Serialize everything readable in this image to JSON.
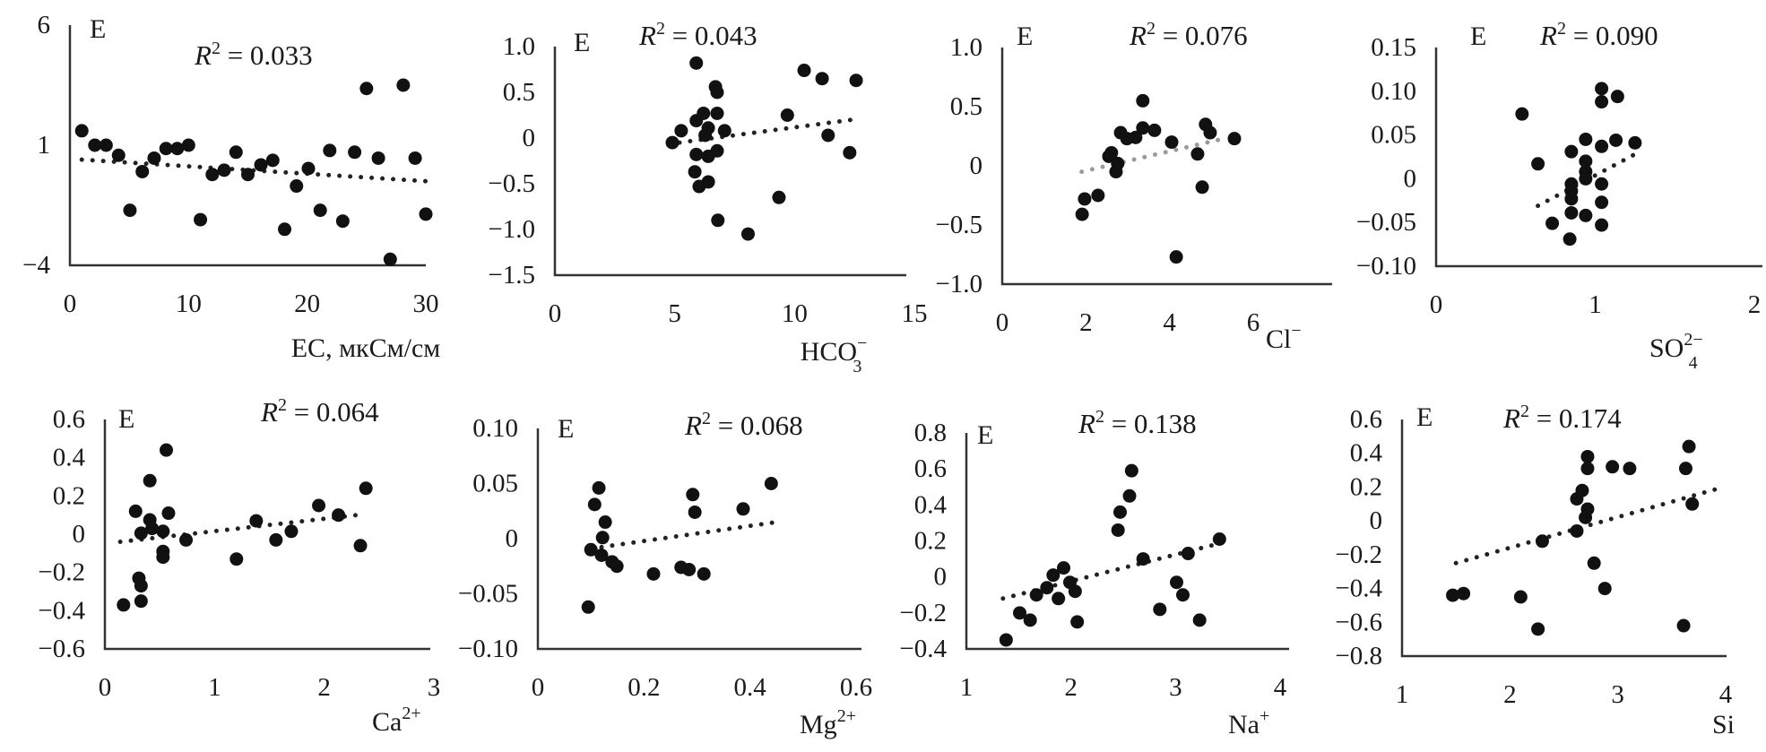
{
  "y_label": "E",
  "stat_symbol": "R",
  "stat_power": "2",
  "stat_eq": " = ",
  "colors": {
    "points": "#111111",
    "trend": "#222222",
    "trend_alt": "#9a9a9a",
    "axis": "#333333"
  },
  "chart_data": [
    {
      "type": "scatter",
      "r2": "0.033",
      "xlabel": {
        "base": "EC, мкСм/см",
        "sub": "",
        "sup": ""
      },
      "ylabel": "E",
      "xlim": [
        0,
        30
      ],
      "ylim": [
        -4,
        6
      ],
      "xticks": [
        {
          "v": 0,
          "label": "0"
        },
        {
          "v": 10,
          "label": "10"
        },
        {
          "v": 20,
          "label": "20"
        },
        {
          "v": 30,
          "label": "30"
        }
      ],
      "yticks": [
        {
          "v": 6,
          "label": "6"
        },
        {
          "v": 1,
          "label": "1"
        },
        {
          "v": -4,
          "label": "−4"
        }
      ],
      "trend_color": "#222222",
      "trendline": [
        [
          1,
          0.4
        ],
        [
          30,
          -0.5
        ]
      ],
      "points": [
        [
          1,
          1.6
        ],
        [
          2.1,
          1.0
        ],
        [
          3.05,
          1.0
        ],
        [
          4.1,
          0.58
        ],
        [
          5.06,
          -1.71
        ],
        [
          6.1,
          -0.1
        ],
        [
          7.1,
          0.46
        ],
        [
          8.1,
          0.86
        ],
        [
          9.05,
          0.86
        ],
        [
          10,
          1.0
        ],
        [
          11,
          -2.1
        ],
        [
          12,
          -0.22
        ],
        [
          13,
          -0.04
        ],
        [
          14,
          0.71
        ],
        [
          15,
          -0.22
        ],
        [
          16.1,
          0.18
        ],
        [
          17.1,
          0.37
        ],
        [
          18.1,
          -2.5
        ],
        [
          19.1,
          -0.7
        ],
        [
          20.1,
          0.03
        ],
        [
          21.1,
          -1.71
        ],
        [
          21.9,
          0.78
        ],
        [
          23,
          -2.16
        ],
        [
          24,
          0.71
        ],
        [
          25,
          3.36
        ],
        [
          26,
          0.46
        ],
        [
          27,
          -3.75
        ],
        [
          28.1,
          3.5
        ],
        [
          29.1,
          0.46
        ],
        [
          30,
          -1.87
        ]
      ]
    },
    {
      "type": "scatter",
      "r2": "0.043",
      "xlabel": {
        "base": "HCO",
        "sub": "3",
        "sup": "−"
      },
      "ylabel": "E",
      "xlim": [
        0,
        15
      ],
      "ylim": [
        -1.5,
        1.0
      ],
      "xticks": [
        {
          "v": 0,
          "label": "0"
        },
        {
          "v": 5,
          "label": "5"
        },
        {
          "v": 10,
          "label": "10"
        },
        {
          "v": 15,
          "label": "15"
        }
      ],
      "yticks": [
        {
          "v": 1,
          "label": "1.0"
        },
        {
          "v": 0.5,
          "label": "0.5"
        },
        {
          "v": 0,
          "label": "0"
        },
        {
          "v": -0.5,
          "label": "−0.5"
        },
        {
          "v": -1,
          "label": "−1.0"
        },
        {
          "v": -1.5,
          "label": "−1.5"
        }
      ],
      "trend_color": "#222222",
      "trendline": [
        [
          5.2,
          -0.05
        ],
        [
          12.4,
          0.2
        ]
      ],
      "points": [
        [
          5.9,
          0.82
        ],
        [
          6.7,
          0.56
        ],
        [
          6.77,
          0.5
        ],
        [
          6.2,
          0.27
        ],
        [
          6.77,
          0.27
        ],
        [
          5.9,
          0.19
        ],
        [
          6.4,
          0.11
        ],
        [
          7.08,
          0.08
        ],
        [
          5.27,
          0.08
        ],
        [
          4.9,
          -0.05
        ],
        [
          6.27,
          0.03
        ],
        [
          5.9,
          -0.18
        ],
        [
          6.77,
          -0.14
        ],
        [
          6.4,
          -0.2
        ],
        [
          5.84,
          -0.37
        ],
        [
          6.02,
          -0.53
        ],
        [
          6.4,
          -0.48
        ],
        [
          6.8,
          -0.9
        ],
        [
          8.06,
          -1.05
        ],
        [
          9.35,
          -0.65
        ],
        [
          9.7,
          0.25
        ],
        [
          10.4,
          0.74
        ],
        [
          11.15,
          0.65
        ],
        [
          12.57,
          0.63
        ],
        [
          11.4,
          0.03
        ],
        [
          12.3,
          -0.16
        ]
      ]
    },
    {
      "type": "scatter",
      "r2": "0.076",
      "xlabel": {
        "base": "Cl",
        "sub": "",
        "sup": "−"
      },
      "ylabel": "E",
      "xlim": [
        0,
        6
      ],
      "ylim": [
        -1.0,
        1.0
      ],
      "xticks": [
        {
          "v": 0,
          "label": "0"
        },
        {
          "v": 2,
          "label": "2"
        },
        {
          "v": 4,
          "label": "4"
        },
        {
          "v": 6,
          "label": "6"
        }
      ],
      "yticks": [
        {
          "v": 1,
          "label": "1.0"
        },
        {
          "v": 0.5,
          "label": "0.5"
        },
        {
          "v": 0,
          "label": "0"
        },
        {
          "v": -0.5,
          "label": "−0.5"
        },
        {
          "v": -1,
          "label": "−1.0"
        }
      ],
      "trend_color": "#9a9a9a",
      "trendline": [
        [
          1.9,
          -0.05
        ],
        [
          5.3,
          0.23
        ]
      ],
      "points": [
        [
          3.36,
          0.55
        ],
        [
          2.83,
          0.28
        ],
        [
          3.36,
          0.32
        ],
        [
          3.64,
          0.3
        ],
        [
          3.19,
          0.24
        ],
        [
          2.98,
          0.23
        ],
        [
          2.61,
          0.11
        ],
        [
          2.55,
          0.08
        ],
        [
          2.76,
          0.02
        ],
        [
          2.72,
          -0.05
        ],
        [
          4.05,
          0.2
        ],
        [
          4.86,
          0.35
        ],
        [
          4.97,
          0.28
        ],
        [
          5.55,
          0.23
        ],
        [
          4.67,
          0.1
        ],
        [
          4.78,
          -0.18
        ],
        [
          1.97,
          -0.28
        ],
        [
          2.29,
          -0.25
        ],
        [
          1.91,
          -0.41
        ],
        [
          4.16,
          -0.77
        ]
      ]
    },
    {
      "type": "scatter",
      "r2": "0.090",
      "xlabel": {
        "base": "SO",
        "sub": "4",
        "sup": "2−"
      },
      "ylabel": "E",
      "xlim": [
        0,
        2
      ],
      "ylim": [
        -0.1,
        0.15
      ],
      "xticks": [
        {
          "v": 0,
          "label": "0"
        },
        {
          "v": 1,
          "label": "1"
        },
        {
          "v": 2,
          "label": "2"
        }
      ],
      "yticks": [
        {
          "v": 0.15,
          "label": "0.15"
        },
        {
          "v": 0.1,
          "label": "0.10"
        },
        {
          "v": 0.05,
          "label": "0.05"
        },
        {
          "v": 0,
          "label": "0"
        },
        {
          "v": -0.05,
          "label": "−0.05"
        },
        {
          "v": -0.1,
          "label": "−0.10"
        }
      ],
      "trend_color": "#222222",
      "trendline": [
        [
          0.64,
          -0.031
        ],
        [
          1.25,
          0.028
        ]
      ],
      "points": [
        [
          1.04,
          0.103
        ],
        [
          1.04,
          0.088
        ],
        [
          1.14,
          0.094
        ],
        [
          0.54,
          0.074
        ],
        [
          0.94,
          0.045
        ],
        [
          1.04,
          0.037
        ],
        [
          1.13,
          0.044
        ],
        [
          1.25,
          0.041
        ],
        [
          0.85,
          0.031
        ],
        [
          0.64,
          0.017
        ],
        [
          0.94,
          0.02
        ],
        [
          0.94,
          0.008
        ],
        [
          0.94,
          0.0
        ],
        [
          0.85,
          -0.006
        ],
        [
          0.85,
          -0.014
        ],
        [
          0.85,
          -0.023
        ],
        [
          1.04,
          -0.006
        ],
        [
          1.04,
          -0.027
        ],
        [
          0.85,
          -0.039
        ],
        [
          0.94,
          -0.042
        ],
        [
          0.73,
          -0.051
        ],
        [
          1.04,
          -0.053
        ],
        [
          0.84,
          -0.069
        ]
      ]
    },
    {
      "type": "scatter",
      "r2": "0.064",
      "xlabel": {
        "base": "Ca",
        "sub": "",
        "sup": "2+"
      },
      "ylabel": "E",
      "xlim": [
        0,
        3
      ],
      "ylim": [
        -0.6,
        0.6
      ],
      "xticks": [
        {
          "v": 0,
          "label": "0"
        },
        {
          "v": 1,
          "label": "1"
        },
        {
          "v": 2,
          "label": "2"
        },
        {
          "v": 3,
          "label": "3"
        }
      ],
      "yticks": [
        {
          "v": 0.6,
          "label": "0.6"
        },
        {
          "v": 0.4,
          "label": "0.4"
        },
        {
          "v": 0.2,
          "label": "0.2"
        },
        {
          "v": 0,
          "label": "0"
        },
        {
          "v": -0.2,
          "label": "−0.2"
        },
        {
          "v": -0.4,
          "label": "−0.4"
        },
        {
          "v": -0.6,
          "label": "−0.6"
        }
      ],
      "trend_color": "#222222",
      "trendline": [
        [
          0.14,
          -0.04
        ],
        [
          2.3,
          0.1
        ]
      ],
      "points": [
        [
          0.56,
          0.44
        ],
        [
          0.41,
          0.28
        ],
        [
          0.28,
          0.12
        ],
        [
          0.58,
          0.11
        ],
        [
          0.41,
          0.075
        ],
        [
          0.33,
          0.005
        ],
        [
          0.53,
          0.015
        ],
        [
          0.43,
          0.03
        ],
        [
          0.74,
          -0.03
        ],
        [
          0.53,
          -0.09
        ],
        [
          0.53,
          -0.12
        ],
        [
          1.2,
          -0.13
        ],
        [
          1.38,
          0.07
        ],
        [
          1.56,
          -0.03
        ],
        [
          1.7,
          0.015
        ],
        [
          1.95,
          0.15
        ],
        [
          2.13,
          0.1
        ],
        [
          2.33,
          -0.06
        ],
        [
          2.38,
          0.24
        ],
        [
          0.31,
          -0.23
        ],
        [
          0.33,
          -0.27
        ],
        [
          0.33,
          -0.35
        ],
        [
          0.17,
          -0.37
        ]
      ]
    },
    {
      "type": "scatter",
      "r2": "0.068",
      "xlabel": {
        "base": "Mg",
        "sub": "",
        "sup": "2+"
      },
      "ylabel": "E",
      "xlim": [
        0,
        0.6
      ],
      "ylim": [
        -0.1,
        0.1
      ],
      "xticks": [
        {
          "v": 0,
          "label": "0"
        },
        {
          "v": 0.2,
          "label": "0.2"
        },
        {
          "v": 0.4,
          "label": "0.4"
        },
        {
          "v": 0.6,
          "label": "0.6"
        }
      ],
      "yticks": [
        {
          "v": 0.1,
          "label": "0.10"
        },
        {
          "v": 0.05,
          "label": "0.05"
        },
        {
          "v": 0,
          "label": "0"
        },
        {
          "v": -0.05,
          "label": "−0.05"
        },
        {
          "v": -0.1,
          "label": "−0.10"
        }
      ],
      "trend_color": "#222222",
      "trendline": [
        [
          0.1,
          -0.009
        ],
        [
          0.45,
          0.015
        ]
      ],
      "points": [
        [
          0.115,
          0.046
        ],
        [
          0.107,
          0.031
        ],
        [
          0.127,
          0.015
        ],
        [
          0.122,
          0.001
        ],
        [
          0.1,
          -0.01
        ],
        [
          0.12,
          -0.015
        ],
        [
          0.14,
          -0.021
        ],
        [
          0.149,
          -0.025
        ],
        [
          0.218,
          -0.032
        ],
        [
          0.27,
          -0.026
        ],
        [
          0.285,
          -0.028
        ],
        [
          0.313,
          -0.032
        ],
        [
          0.292,
          0.04
        ],
        [
          0.296,
          0.024
        ],
        [
          0.387,
          0.027
        ],
        [
          0.44,
          0.05
        ],
        [
          0.095,
          -0.062
        ]
      ]
    },
    {
      "type": "scatter",
      "r2": "0.138",
      "xlabel": {
        "base": "Na",
        "sub": "",
        "sup": "+"
      },
      "ylabel": "E",
      "xlim": [
        1,
        4
      ],
      "ylim": [
        -0.4,
        0.8
      ],
      "xticks": [
        {
          "v": 1,
          "label": "1"
        },
        {
          "v": 2,
          "label": "2"
        },
        {
          "v": 3,
          "label": "3"
        },
        {
          "v": 4,
          "label": "4"
        }
      ],
      "yticks": [
        {
          "v": 0.8,
          "label": "0.8"
        },
        {
          "v": 0.6,
          "label": "0.6"
        },
        {
          "v": 0.4,
          "label": "0.4"
        },
        {
          "v": 0.2,
          "label": "0.2"
        },
        {
          "v": 0,
          "label": "0"
        },
        {
          "v": -0.2,
          "label": "−0.2"
        },
        {
          "v": -0.4,
          "label": "−0.4"
        }
      ],
      "trend_color": "#222222",
      "trendline": [
        [
          1.35,
          -0.12
        ],
        [
          3.38,
          0.18
        ]
      ],
      "points": [
        [
          2.58,
          0.59
        ],
        [
          2.56,
          0.45
        ],
        [
          2.47,
          0.36
        ],
        [
          2.45,
          0.26
        ],
        [
          2.69,
          0.1
        ],
        [
          3.42,
          0.21
        ],
        [
          3.12,
          0.13
        ],
        [
          1.93,
          0.05
        ],
        [
          1.83,
          0.01
        ],
        [
          1.99,
          -0.03
        ],
        [
          1.77,
          -0.06
        ],
        [
          1.88,
          -0.12
        ],
        [
          2.04,
          -0.08
        ],
        [
          1.67,
          -0.1
        ],
        [
          1.51,
          -0.2
        ],
        [
          1.61,
          -0.24
        ],
        [
          2.06,
          -0.25
        ],
        [
          1.38,
          -0.35
        ],
        [
          3.01,
          -0.03
        ],
        [
          3.07,
          -0.1
        ],
        [
          2.85,
          -0.18
        ],
        [
          3.23,
          -0.24
        ]
      ]
    },
    {
      "type": "scatter",
      "r2": "0.174",
      "xlabel": {
        "base": "Si",
        "sub": "",
        "sup": ""
      },
      "ylabel": "E",
      "xlim": [
        1,
        4
      ],
      "ylim": [
        -0.8,
        0.6
      ],
      "xticks": [
        {
          "v": 1,
          "label": "1"
        },
        {
          "v": 2,
          "label": "2"
        },
        {
          "v": 3,
          "label": "3"
        },
        {
          "v": 4,
          "label": "4"
        }
      ],
      "yticks": [
        {
          "v": 0.6,
          "label": "0.6"
        },
        {
          "v": 0.4,
          "label": "0.4"
        },
        {
          "v": 0.2,
          "label": "0.2"
        },
        {
          "v": 0,
          "label": "0"
        },
        {
          "v": -0.2,
          "label": "−0.2"
        },
        {
          "v": -0.4,
          "label": "−0.4"
        },
        {
          "v": -0.6,
          "label": "−0.6"
        },
        {
          "v": -0.8,
          "label": "−0.8"
        }
      ],
      "trend_color": "#222222",
      "trendline": [
        [
          1.5,
          -0.25
        ],
        [
          3.98,
          0.2
        ]
      ],
      "points": [
        [
          3.66,
          0.44
        ],
        [
          3.63,
          0.31
        ],
        [
          3.69,
          0.1
        ],
        [
          2.72,
          0.38
        ],
        [
          2.95,
          0.32
        ],
        [
          3.11,
          0.31
        ],
        [
          2.72,
          0.31
        ],
        [
          2.67,
          0.18
        ],
        [
          2.62,
          0.13
        ],
        [
          2.72,
          0.07
        ],
        [
          2.7,
          0.02
        ],
        [
          2.62,
          -0.06
        ],
        [
          2.3,
          -0.12
        ],
        [
          2.78,
          -0.25
        ],
        [
          2.88,
          -0.4
        ],
        [
          1.57,
          -0.43
        ],
        [
          1.47,
          -0.44
        ],
        [
          2.1,
          -0.45
        ],
        [
          2.26,
          -0.64
        ],
        [
          3.61,
          -0.62
        ]
      ]
    }
  ]
}
